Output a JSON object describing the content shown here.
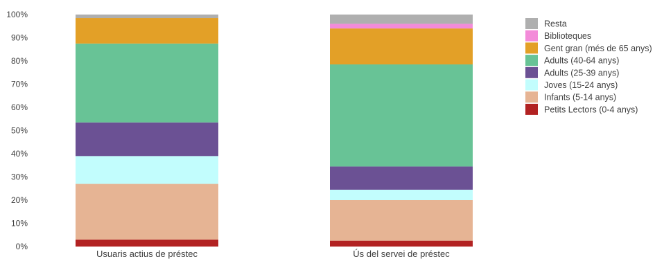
{
  "chart_data": {
    "type": "stacked-bar-100",
    "title": "",
    "xlabel": "",
    "ylabel": "",
    "ylim": [
      0,
      100
    ],
    "y_tick_format": "percent",
    "y_ticks": [
      0,
      10,
      20,
      30,
      40,
      50,
      60,
      70,
      80,
      90,
      100
    ],
    "grid": false,
    "legend_position": "right",
    "categories": [
      "Usuaris actius de préstec",
      "Ús del servei de préstec"
    ],
    "series": [
      {
        "name": "Petits Lectors (0-4 anys)",
        "color": "#b22222",
        "values": [
          3,
          2.5
        ]
      },
      {
        "name": "Infants (5-14 anys)",
        "color": "#e6b494",
        "values": [
          24,
          17.5
        ]
      },
      {
        "name": "Joves (15-24 anys)",
        "color": "#c2fdfd",
        "values": [
          12,
          4.5
        ]
      },
      {
        "name": "Adults (25-39 anys)",
        "color": "#6b5194",
        "values": [
          14.5,
          10
        ]
      },
      {
        "name": "Adults (40-64 anys)",
        "color": "#68c396",
        "values": [
          34,
          44
        ]
      },
      {
        "name": "Gent gran (més de 65 anys)",
        "color": "#e3a027",
        "values": [
          11,
          15.5
        ]
      },
      {
        "name": "Biblioteques",
        "color": "#f38bd9",
        "values": [
          0,
          2
        ]
      },
      {
        "name": "Resta",
        "color": "#afafaf",
        "values": [
          1.5,
          4
        ]
      }
    ]
  }
}
